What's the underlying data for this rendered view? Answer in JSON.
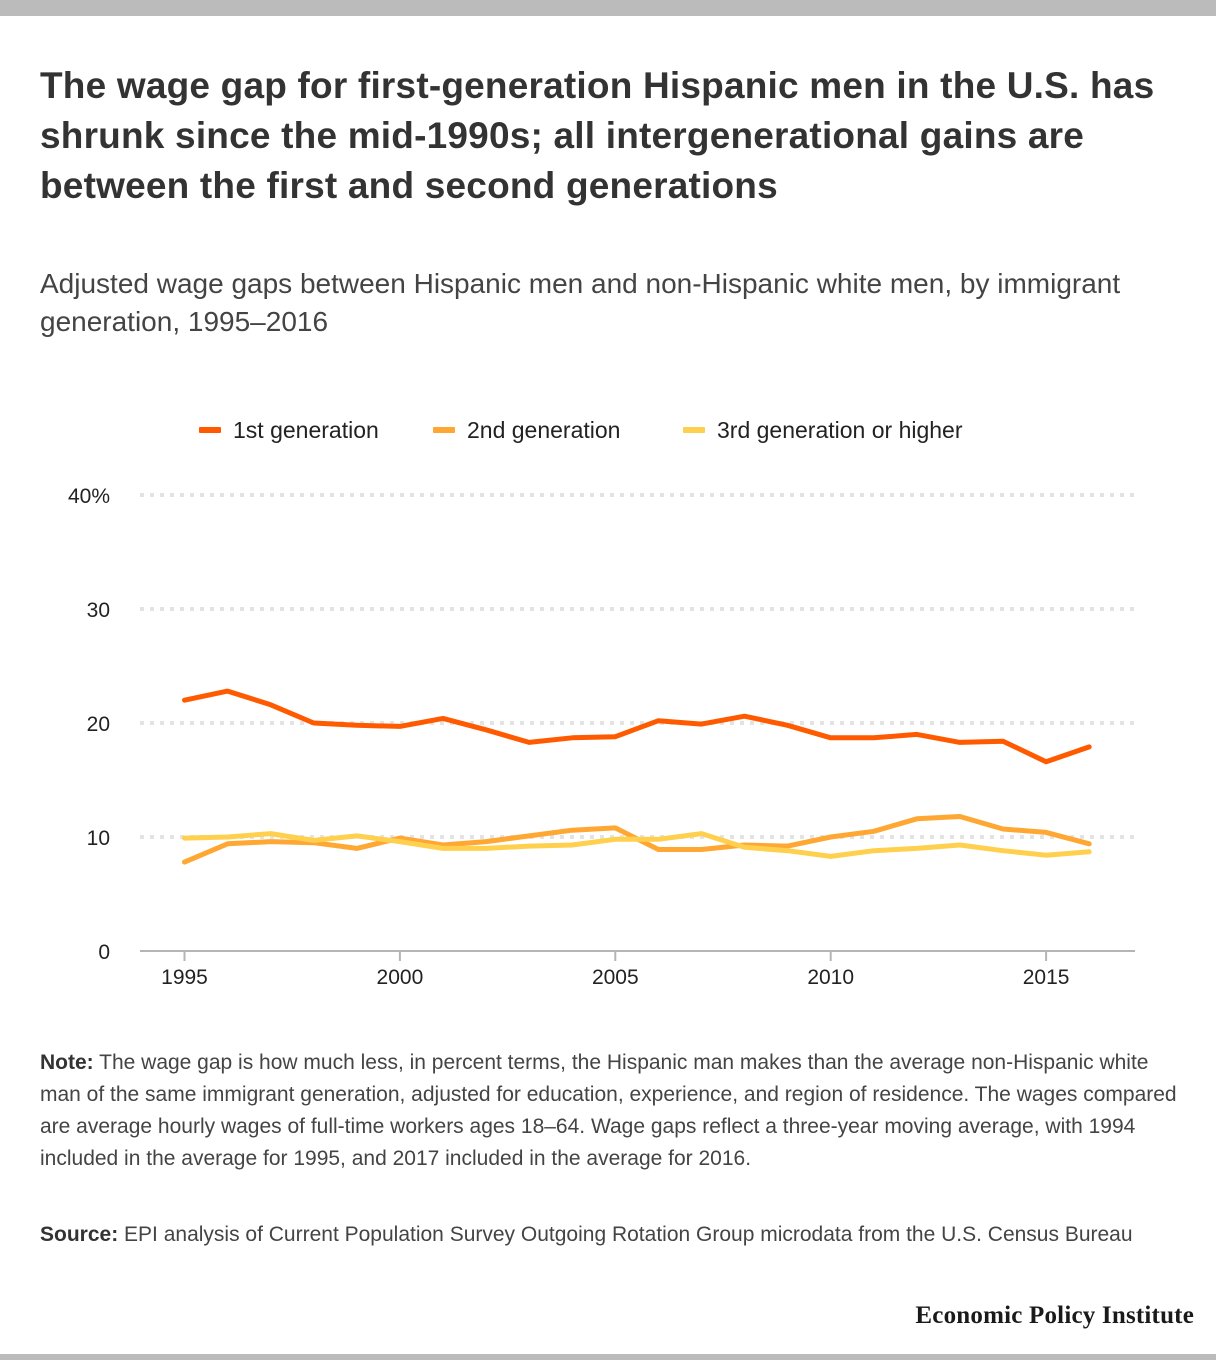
{
  "header": {
    "title": "The wage gap for first-generation Hispanic men in the U.S. has shrunk since the mid-1990s; all intergenerational gains are between the first and second generations",
    "subtitle": "Adjusted wage gaps between Hispanic men and non-Hispanic white men, by immigrant generation, 1995–2016"
  },
  "legend": {
    "items": [
      {
        "label": "1st generation",
        "color": "#ff5a00"
      },
      {
        "label": "2nd generation",
        "color": "#ffa733"
      },
      {
        "label": "3rd generation or higher",
        "color": "#ffd04d"
      }
    ]
  },
  "chart_data": {
    "type": "line",
    "title": "The wage gap for first-generation Hispanic men in the U.S. has shrunk since the mid-1990s; all intergenerational gains are between the first and second generations",
    "subtitle": "Adjusted wage gaps between Hispanic men and non-Hispanic white men, by immigrant generation, 1995–2016",
    "xlabel": "",
    "ylabel": "",
    "x": [
      1995,
      1996,
      1997,
      1998,
      1999,
      2000,
      2001,
      2002,
      2003,
      2004,
      2005,
      2006,
      2007,
      2008,
      2009,
      2010,
      2011,
      2012,
      2013,
      2014,
      2015,
      2016
    ],
    "xlim": [
      1994,
      2017
    ],
    "ylim": [
      0,
      40
    ],
    "x_ticks": [
      1995,
      2000,
      2005,
      2010,
      2015
    ],
    "x_tick_labels": [
      "1995",
      "2000",
      "2005",
      "2010",
      "2015"
    ],
    "y_ticks": [
      0,
      10,
      20,
      30,
      40
    ],
    "y_tick_labels": [
      "0",
      "10",
      "20",
      "30",
      "40%"
    ],
    "grid": true,
    "legend_position": "top-center",
    "series": [
      {
        "name": "1st generation",
        "color": "#ff5a00",
        "values": [
          22.0,
          22.8,
          21.6,
          20.0,
          19.8,
          19.7,
          20.4,
          19.4,
          18.3,
          18.7,
          18.8,
          20.2,
          19.9,
          20.6,
          19.8,
          18.7,
          18.7,
          19.0,
          18.3,
          18.4,
          16.6,
          17.9
        ]
      },
      {
        "name": "2nd generation",
        "color": "#ffa733",
        "values": [
          7.8,
          9.4,
          9.6,
          9.5,
          9.0,
          9.9,
          9.3,
          9.6,
          10.1,
          10.6,
          10.8,
          8.9,
          8.9,
          9.3,
          9.2,
          10.0,
          10.5,
          11.6,
          11.8,
          10.7,
          10.4,
          9.4
        ]
      },
      {
        "name": "3rd generation or higher",
        "color": "#ffd04d",
        "values": [
          9.9,
          10.0,
          10.3,
          9.7,
          10.1,
          9.6,
          9.0,
          9.0,
          9.2,
          9.3,
          9.8,
          9.8,
          10.3,
          9.1,
          8.8,
          8.3,
          8.8,
          9.0,
          9.3,
          8.8,
          8.4,
          8.7
        ]
      }
    ]
  },
  "footer": {
    "note_label": "Note:",
    "note_text": " The wage gap is how much less, in percent terms, the Hispanic man makes than the average non-Hispanic white man of the same immigrant generation, adjusted for education, experience, and region of residence. The wages compared are average hourly wages of full-time workers ages 18–64. Wage gaps reflect a three-year moving average, with 1994 included in the average for 1995, and 2017 included in the average for 2016.",
    "source_label": "Source:",
    "source_text": " EPI analysis of Current Population Survey Outgoing Rotation Group microdata from the U.S. Census Bureau",
    "brand": "Economic Policy Institute"
  }
}
